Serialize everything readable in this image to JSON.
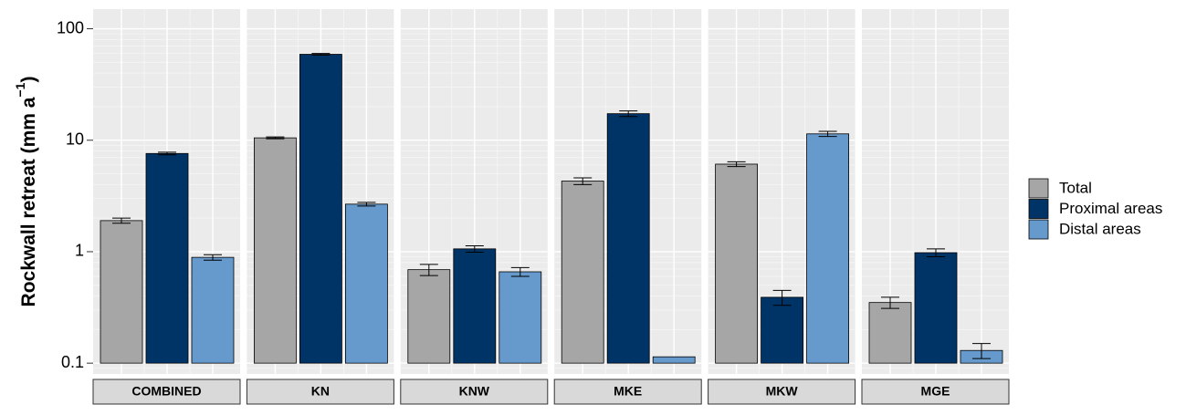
{
  "chart_data": {
    "type": "bar",
    "ylabel": {
      "text": "Rockwall retreat (mm a",
      "superscript": "−1",
      "suffix": ")"
    },
    "categories": [
      "COMBINED",
      "KN",
      "KNW",
      "MKE",
      "MKW",
      "MGE"
    ],
    "series": [
      {
        "name": "Total",
        "color": "#a6a6a6",
        "values": [
          1.9,
          10.5,
          0.69,
          4.3,
          6.1,
          0.35
        ],
        "errors": [
          0.1,
          0.2,
          0.08,
          0.3,
          0.3,
          0.04
        ]
      },
      {
        "name": "Proximal areas",
        "color": "#003366",
        "values": [
          7.6,
          59,
          1.06,
          17.3,
          0.39,
          0.98
        ],
        "errors": [
          0.2,
          1,
          0.07,
          1,
          0.06,
          0.08
        ]
      },
      {
        "name": "Distal areas",
        "color": "#6699cc",
        "values": [
          0.89,
          2.67,
          0.66,
          0.114,
          11.4,
          0.13
        ],
        "errors": [
          0.05,
          0.1,
          0.06,
          null,
          0.6,
          0.02
        ]
      }
    ],
    "log_scale": true,
    "ylim": [
      0.08,
      150
    ],
    "yticks": [
      0.1,
      1,
      10,
      100
    ],
    "grid": true,
    "legend": "right"
  }
}
